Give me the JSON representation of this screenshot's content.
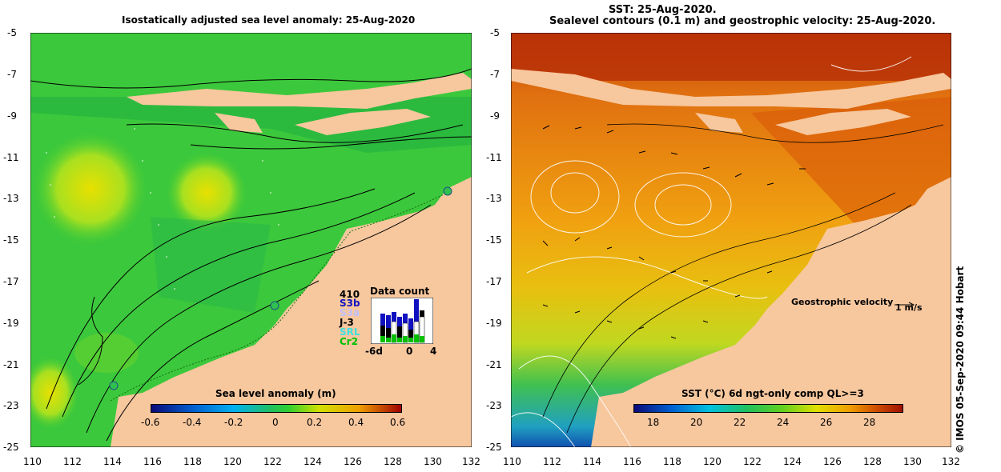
{
  "left_panel": {
    "title": "Isostatically adjusted sea level anomaly: 25-Aug-2020",
    "colorbar": {
      "title": "Sea level anomaly (m)",
      "ticks": [
        "-0.6",
        "-0.4",
        "-0.2",
        "0",
        "0.2",
        "0.4",
        "0.6"
      ],
      "colors": [
        "#0a0a7a",
        "#0060d0",
        "#00b0f0",
        "#20c060",
        "#30d030",
        "#d0e000",
        "#f0a000",
        "#d04000",
        "#a00000"
      ]
    },
    "data_count": {
      "title": "Data count",
      "max_label": "410",
      "satellites": [
        {
          "name": "S3b",
          "color": "#1010c0"
        },
        {
          "name": "S3a",
          "color": "#c0c0ff"
        },
        {
          "name": "J-3",
          "color": "#000000"
        },
        {
          "name": "SRL",
          "color": "#40e0e0"
        },
        {
          "name": "Cr2",
          "color": "#00c000"
        }
      ],
      "x_ticks": [
        "-6d",
        "0",
        "4"
      ]
    },
    "y_ticks": [
      "-5",
      "-7",
      "-9",
      "-11",
      "-13",
      "-15",
      "-17",
      "-19",
      "-21",
      "-23",
      "-25"
    ],
    "x_ticks": [
      "110",
      "112",
      "114",
      "116",
      "118",
      "120",
      "122",
      "124",
      "126",
      "128",
      "130",
      "132"
    ]
  },
  "right_panel": {
    "title_line1": "SST: 25-Aug-2020.",
    "title_line2": "Sealevel contours (0.1 m) and geostrophic velocity: 25-Aug-2020.",
    "velocity_label": "Geostrophic velocity",
    "velocity_scale": "1 m/s",
    "colorbar": {
      "title": "SST (°C) 6d ngt-only comp QL>=3",
      "ticks": [
        "18",
        "20",
        "22",
        "24",
        "26",
        "28"
      ],
      "colors": [
        "#0a0a7a",
        "#0060d0",
        "#00c0e0",
        "#20c060",
        "#60d020",
        "#e0e000",
        "#f0a000",
        "#d05000",
        "#a01000"
      ]
    },
    "y_ticks": [
      "-5",
      "-7",
      "-9",
      "-11",
      "-13",
      "-15",
      "-17",
      "-19",
      "-21",
      "-23",
      "-25"
    ],
    "x_ticks": [
      "110",
      "112",
      "114",
      "116",
      "118",
      "120",
      "122",
      "124",
      "126",
      "128",
      "130",
      "132"
    ]
  },
  "credit": "© IMOS 05-Sep-2020 09:44 Hobart",
  "colors": {
    "land": "#f7c79e",
    "sla_green": "#3cc83c",
    "sst_orange": "#e8820a"
  }
}
